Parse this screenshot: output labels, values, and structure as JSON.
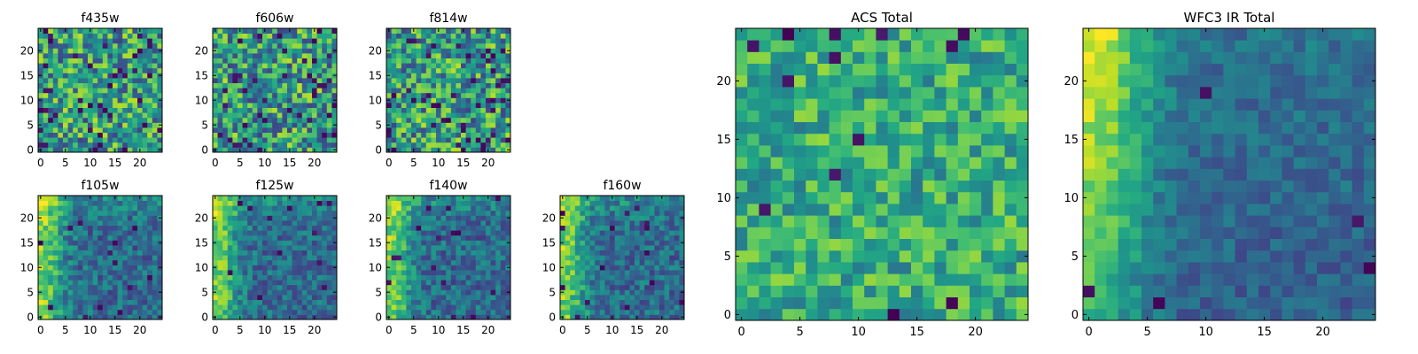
{
  "chart_data": [
    {
      "type": "heatmap",
      "title": "f435w",
      "size": 25,
      "colormap": "viridis",
      "xticks": [
        0,
        5,
        10,
        15,
        20
      ],
      "yticks": [
        0,
        5,
        10,
        15,
        20
      ],
      "pattern": "noise",
      "seed": 11,
      "hole_fraction": 0.06
    },
    {
      "type": "heatmap",
      "title": "f606w",
      "size": 25,
      "colormap": "viridis",
      "xticks": [
        0,
        5,
        10,
        15,
        20
      ],
      "yticks": [
        0,
        5,
        10,
        15,
        20
      ],
      "pattern": "noise",
      "seed": 23,
      "hole_fraction": 0.06
    },
    {
      "type": "heatmap",
      "title": "f814w",
      "size": 25,
      "colormap": "viridis",
      "xticks": [
        0,
        5,
        10,
        15,
        20
      ],
      "yticks": [
        0,
        5,
        10,
        15,
        20
      ],
      "pattern": "noise",
      "seed": 37,
      "hole_fraction": 0.07
    },
    {
      "type": "heatmap",
      "title": "f105w",
      "size": 25,
      "colormap": "viridis",
      "xticks": [
        0,
        5,
        10,
        15,
        20
      ],
      "yticks": [
        0,
        5,
        10,
        15,
        20
      ],
      "pattern": "gradient",
      "seed": 41,
      "hole_fraction": 0.02
    },
    {
      "type": "heatmap",
      "title": "f125w",
      "size": 25,
      "colormap": "viridis",
      "xticks": [
        0,
        5,
        10,
        15,
        20
      ],
      "yticks": [
        0,
        5,
        10,
        15,
        20
      ],
      "pattern": "gradient",
      "seed": 53,
      "hole_fraction": 0.02
    },
    {
      "type": "heatmap",
      "title": "f140w",
      "size": 25,
      "colormap": "viridis",
      "xticks": [
        0,
        5,
        10,
        15,
        20
      ],
      "yticks": [
        0,
        5,
        10,
        15,
        20
      ],
      "pattern": "gradient",
      "seed": 67,
      "hole_fraction": 0.02
    },
    {
      "type": "heatmap",
      "title": "f160w",
      "size": 25,
      "colormap": "viridis",
      "xticks": [
        0,
        5,
        10,
        15,
        20
      ],
      "yticks": [
        0,
        5,
        10,
        15,
        20
      ],
      "pattern": "gradient",
      "seed": 79,
      "hole_fraction": 0.03
    },
    {
      "type": "heatmap",
      "title": "ACS Total",
      "size": 25,
      "colormap": "viridis",
      "xticks": [
        0,
        5,
        10,
        15,
        20
      ],
      "yticks": [
        0,
        5,
        10,
        15,
        20
      ],
      "pattern": "acs",
      "seed": 97,
      "hole_fraction": 0.03
    },
    {
      "type": "heatmap",
      "title": "WFC3 IR Total",
      "size": 25,
      "colormap": "viridis",
      "xticks": [
        0,
        5,
        10,
        15,
        20
      ],
      "yticks": [
        0,
        5,
        10,
        15,
        20
      ],
      "pattern": "ir",
      "seed": 113,
      "hole_fraction": 0.01
    }
  ]
}
